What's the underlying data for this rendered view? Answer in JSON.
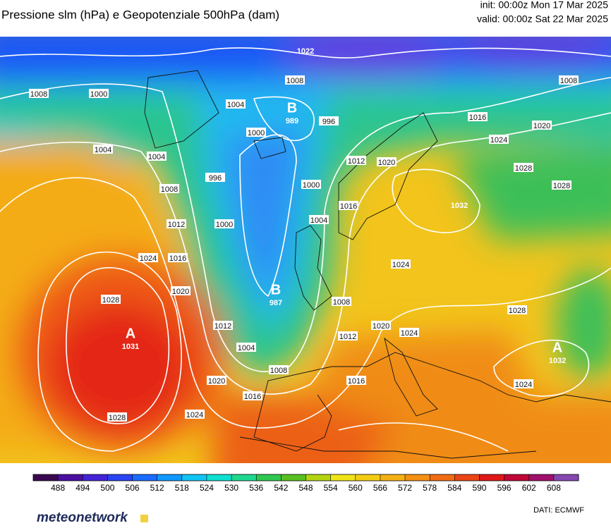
{
  "header": {
    "title": "Pressione slm (hPa) e Geopotenziale 500hPa (dam)",
    "init": "init: 00:00z Mon 17 Mar 2025",
    "valid": "valid: 00:00z Sat 22 Mar 2025"
  },
  "map": {
    "isobar_labels": [
      "1008",
      "1000",
      "1004",
      "1008",
      "1000",
      "996",
      "1004",
      "1004",
      "996",
      "1008",
      "1012",
      "1000",
      "1000",
      "1004",
      "1012",
      "1020",
      "1016",
      "1016",
      "1020",
      "1024",
      "1028",
      "1028",
      "1008",
      "1024",
      "1016",
      "1020",
      "1028",
      "1012",
      "1004",
      "1008",
      "1016",
      "1020",
      "1028",
      "1024",
      "1008",
      "1012",
      "1020",
      "1024",
      "1016",
      "1024",
      "1028",
      "1024"
    ],
    "pressure_centers": [
      {
        "letter": "B",
        "value": "989"
      },
      {
        "letter": "B",
        "value": "987"
      },
      {
        "letter": "A",
        "value": "1031"
      },
      {
        "letter": "A",
        "value": "1032"
      }
    ],
    "other_values": [
      "1022",
      "1032"
    ],
    "colorbar": {
      "ticks": [
        488,
        494,
        500,
        506,
        512,
        518,
        524,
        530,
        536,
        542,
        548,
        554,
        560,
        566,
        572,
        578,
        584,
        590,
        596,
        602,
        608
      ],
      "colors": [
        "#3a0850",
        "#4a10a0",
        "#4424d8",
        "#2a44f4",
        "#1a6cff",
        "#1098ff",
        "#10c4f4",
        "#10e0d0",
        "#20d890",
        "#30c850",
        "#58c020",
        "#b4d412",
        "#f0e418",
        "#f4cc14",
        "#f4b014",
        "#f49014",
        "#f06c14",
        "#ec4414",
        "#e01818",
        "#c00838",
        "#a0106c",
        "#8448b0"
      ]
    }
  },
  "footer": {
    "logo": "meteonetwork",
    "source": "DATI:  ECMWF"
  }
}
